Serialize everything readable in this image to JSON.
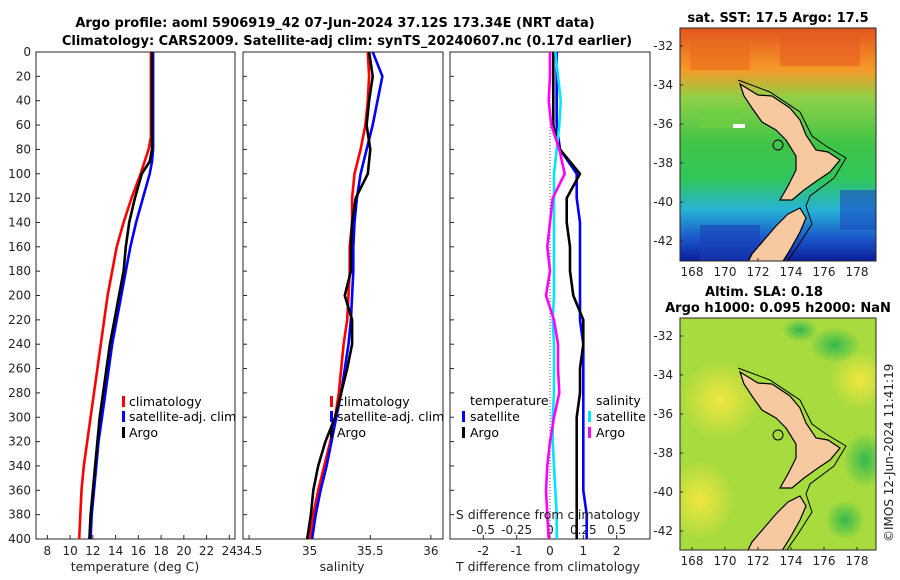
{
  "titles": {
    "line1": "Argo profile: aoml 5906919_42 07-Jun-2024 37.12S 173.34E (NRT data)",
    "line2": "Climatology: CARS2009. Satellite-adj clim: synTS_20240607.nc (0.17d earlier)"
  },
  "stamp": "©IMOS 12-Jun-2024 11:41:19",
  "colors": {
    "climatology": "#ff0000",
    "satellite": "#0000ff",
    "argo": "#000000",
    "salinity_satellite": "#00e5ff",
    "salinity_argo": "#ff00ff"
  },
  "chart_data": [
    {
      "type": "line",
      "name": "temperature",
      "xlabel": "temperature (deg C)",
      "ylabel": "",
      "xlim": [
        7,
        24.5
      ],
      "ylim": [
        0,
        400
      ],
      "xticks": [
        8,
        10,
        12,
        14,
        16,
        18,
        20,
        22,
        24
      ],
      "yticks": [
        0,
        20,
        40,
        60,
        80,
        100,
        120,
        140,
        160,
        180,
        200,
        220,
        240,
        260,
        280,
        300,
        320,
        340,
        360,
        380,
        400
      ],
      "legend": [
        "climatology",
        "satellite-adj. clim",
        "Argo"
      ],
      "series": [
        {
          "name": "climatology",
          "x": [
            17.1,
            17.1,
            17.1,
            17.1,
            17.1,
            16.9,
            16.2,
            15.4,
            14.7,
            14.1,
            13.7,
            13.3,
            13.0,
            12.7,
            12.4,
            12.1,
            11.8,
            11.5,
            11.2,
            11.0,
            10.8
          ],
          "y": [
            0,
            20,
            40,
            60,
            70,
            80,
            100,
            120,
            140,
            160,
            180,
            200,
            220,
            240,
            260,
            280,
            300,
            320,
            340,
            360,
            400
          ]
        },
        {
          "name": "satellite-adj. clim",
          "x": [
            17.3,
            17.3,
            17.3,
            17.3,
            17.3,
            17.2,
            17.0,
            16.4,
            15.8,
            15.3,
            14.9,
            14.5,
            14.1,
            13.7,
            13.4,
            13.1,
            12.8,
            12.5,
            12.3,
            12.1,
            11.9,
            11.8
          ],
          "y": [
            0,
            20,
            40,
            60,
            80,
            90,
            100,
            120,
            140,
            160,
            180,
            200,
            220,
            240,
            260,
            280,
            300,
            320,
            340,
            360,
            380,
            400
          ]
        },
        {
          "name": "Argo",
          "x": [
            17.2,
            17.2,
            17.2,
            17.2,
            17.2,
            17.0,
            16.3,
            15.7,
            15.2,
            14.9,
            14.7,
            14.3,
            13.9,
            13.5,
            13.2,
            12.9,
            12.6,
            12.4,
            12.2,
            12.0,
            11.8,
            11.7
          ],
          "y": [
            0,
            20,
            40,
            60,
            80,
            90,
            100,
            120,
            140,
            160,
            180,
            200,
            220,
            240,
            260,
            280,
            300,
            320,
            340,
            360,
            380,
            400
          ]
        }
      ]
    },
    {
      "type": "line",
      "name": "salinity",
      "xlabel": "salinity",
      "ylabel": "",
      "xlim": [
        34.45,
        36.1
      ],
      "ylim": [
        0,
        400
      ],
      "xticks": [
        34.5,
        35,
        35.5,
        36
      ],
      "legend": [
        "climatology",
        "satellite-adj. clim",
        "Argo"
      ],
      "series": [
        {
          "name": "climatology",
          "x": [
            35.48,
            35.49,
            35.48,
            35.46,
            35.42,
            35.37,
            35.35,
            35.35,
            35.33,
            35.33,
            35.32,
            35.31,
            35.28,
            35.26,
            35.24,
            35.21,
            35.17,
            35.12,
            35.07,
            35.03,
            35.0
          ],
          "y": [
            0,
            20,
            40,
            60,
            80,
            100,
            120,
            140,
            160,
            180,
            200,
            220,
            240,
            260,
            280,
            300,
            320,
            340,
            360,
            380,
            400
          ]
        },
        {
          "name": "satellite-adj. clim",
          "x": [
            35.52,
            35.6,
            35.56,
            35.52,
            35.47,
            35.42,
            35.39,
            35.37,
            35.36,
            35.36,
            35.35,
            35.34,
            35.32,
            35.29,
            35.26,
            35.22,
            35.18,
            35.14,
            35.09,
            35.05,
            35.02
          ],
          "y": [
            0,
            20,
            40,
            60,
            80,
            100,
            120,
            140,
            160,
            180,
            200,
            220,
            240,
            260,
            280,
            300,
            320,
            340,
            360,
            380,
            400
          ]
        },
        {
          "name": "Argo",
          "x": [
            35.49,
            35.52,
            35.49,
            35.47,
            35.5,
            35.48,
            35.38,
            35.35,
            35.34,
            35.34,
            35.29,
            35.35,
            35.35,
            35.31,
            35.26,
            35.21,
            35.13,
            35.07,
            35.03,
            35.01,
            34.98
          ],
          "y": [
            0,
            20,
            40,
            60,
            80,
            100,
            120,
            140,
            160,
            180,
            200,
            220,
            240,
            260,
            280,
            300,
            320,
            340,
            360,
            380,
            400
          ]
        }
      ]
    },
    {
      "type": "line",
      "name": "difference from climatology",
      "xlabel": "T difference from climatology",
      "xlabel_top": "S difference from climatology",
      "xlim": [
        -3.0,
        3.0
      ],
      "ylim": [
        0,
        400
      ],
      "xticks": [
        -2,
        -1,
        0,
        1,
        2
      ],
      "xticks_salinity": [
        -0.5,
        -0.25,
        0,
        0.25,
        0.5
      ],
      "xticks_salinity_labels": [
        "-0.5",
        "-0.25",
        "0",
        "0.25",
        "0.5"
      ],
      "legend_temperature_title": "temperature",
      "legend_salinity_title": "salinity",
      "legend_temperature": [
        "satellite",
        "Argo"
      ],
      "legend_salinity": [
        "satellite",
        "Argo"
      ],
      "series": [
        {
          "name": "T satellite",
          "x": [
            0.2,
            0.2,
            0.2,
            0.2,
            0.3,
            0.8,
            0.8,
            0.9,
            0.9,
            0.9,
            0.9,
            0.9,
            1.0,
            1.0,
            1.0,
            1.0,
            1.0,
            1.0,
            1.0,
            1.1,
            1.1
          ],
          "y": [
            0,
            20,
            40,
            60,
            80,
            100,
            120,
            140,
            160,
            180,
            200,
            220,
            240,
            260,
            280,
            300,
            320,
            340,
            360,
            380,
            400
          ]
        },
        {
          "name": "T Argo",
          "x": [
            0.1,
            0.1,
            0.1,
            0.1,
            0.3,
            0.9,
            0.5,
            0.5,
            0.6,
            0.6,
            0.7,
            1.0,
            1.0,
            0.9,
            0.9,
            0.8,
            0.8,
            0.8,
            0.8,
            0.8,
            0.8
          ],
          "y": [
            0,
            20,
            40,
            60,
            80,
            100,
            120,
            140,
            160,
            180,
            200,
            220,
            240,
            260,
            280,
            300,
            320,
            340,
            360,
            380,
            400
          ]
        },
        {
          "name": "S satellite",
          "x": [
            0.04,
            0.06,
            0.08,
            0.07,
            0.05,
            0.03,
            0.03,
            0.03,
            0.03,
            0.03,
            0.03,
            0.02,
            0.03,
            0.03,
            0.03,
            0.02,
            0.02,
            0.03,
            0.04,
            0.05,
            0.05
          ],
          "y": [
            0,
            20,
            40,
            60,
            80,
            100,
            120,
            140,
            160,
            180,
            200,
            220,
            240,
            260,
            280,
            300,
            320,
            340,
            360,
            380,
            400
          ]
        },
        {
          "name": "S Argo",
          "x": [
            0.0,
            0.0,
            -0.01,
            0.01,
            0.07,
            0.11,
            0.02,
            0.0,
            -0.02,
            0.0,
            -0.03,
            0.03,
            0.06,
            0.06,
            0.07,
            0.03,
            0.0,
            -0.02,
            -0.03,
            -0.02,
            -0.01
          ],
          "y": [
            0,
            20,
            40,
            60,
            80,
            100,
            120,
            140,
            160,
            180,
            200,
            220,
            240,
            260,
            280,
            300,
            320,
            340,
            360,
            380,
            400
          ]
        }
      ]
    }
  ],
  "maps": [
    {
      "title": "sat. SST: 17.5 Argo: 17.5",
      "title_line2": "",
      "xticks": [
        "168",
        "170",
        "172",
        "174",
        "176",
        "178"
      ],
      "yticks": [
        "-32",
        "-34",
        "-36",
        "-38",
        "-40",
        "-42"
      ]
    },
    {
      "title": "Altim. SLA: 0.18",
      "title_line2": "Argo h1000: 0.095 h2000: NaN",
      "xticks": [
        "168",
        "170",
        "172",
        "174",
        "176",
        "178"
      ],
      "yticks": [
        "-32",
        "-34",
        "-36",
        "-38",
        "-40",
        "-42"
      ]
    }
  ]
}
